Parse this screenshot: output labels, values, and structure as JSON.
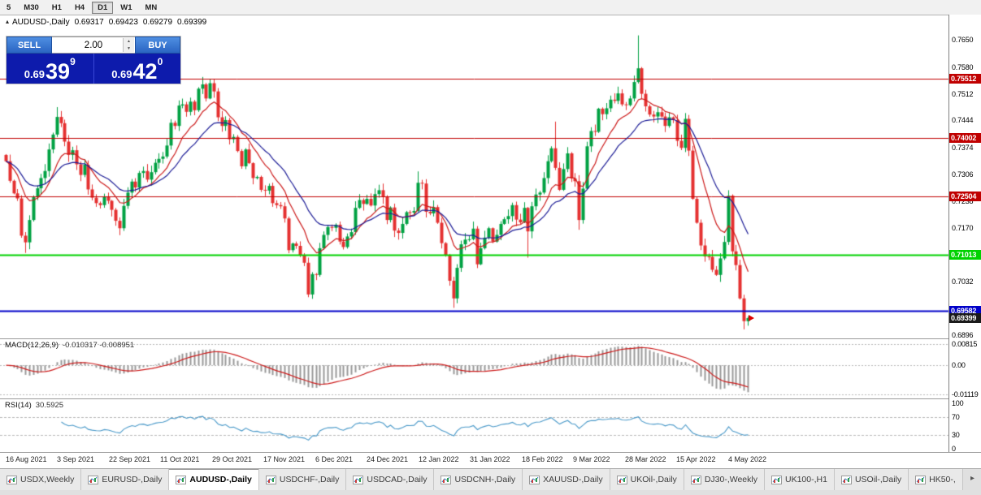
{
  "toolbar": {
    "timeframes": [
      "5",
      "M30",
      "H1",
      "H4",
      "D1",
      "W1",
      "MN"
    ],
    "active": "D1"
  },
  "chart_header": {
    "collapse_icon": "▴",
    "symbol": "AUDUSD-,Daily",
    "open": "0.69317",
    "high": "0.69423",
    "low": "0.69279",
    "close": "0.69399"
  },
  "trade_panel": {
    "sell_label": "SELL",
    "buy_label": "BUY",
    "volume": "2.00",
    "sell_price": {
      "main": "0.69",
      "big": "39",
      "sup": "9"
    },
    "buy_price": {
      "main": "0.69",
      "big": "42",
      "sup": "0"
    }
  },
  "colors": {
    "up": "#00a143",
    "down": "#e53030",
    "ma_fast": "#cc1a1a",
    "ma_slow": "#1c1c96",
    "macd_hist": "#999999",
    "macd_signal": "#cc1a1a",
    "rsi_line": "#4898c8",
    "level_red": "#c00000",
    "level_green": "#00d200",
    "level_blue": "#0000c8",
    "badge_black": "#1a1a1a",
    "grid_dash": "#b8b8b8"
  },
  "price_axis": {
    "labels": [
      {
        "text": "0.7650",
        "value": 0.765
      },
      {
        "text": "0.7580",
        "value": 0.758
      },
      {
        "text": "0.7512",
        "value": 0.7512
      },
      {
        "text": "0.7444",
        "value": 0.7444
      },
      {
        "text": "0.7374",
        "value": 0.7374
      },
      {
        "text": "0.7306",
        "value": 0.7306
      },
      {
        "text": "0.7238",
        "value": 0.7238
      },
      {
        "text": "0.7170",
        "value": 0.717
      },
      {
        "text": "0.7032",
        "value": 0.7032
      },
      {
        "text": "0.6896",
        "value": 0.6896
      }
    ],
    "current": {
      "text": "0.69399",
      "value": 0.69399
    }
  },
  "macd_panel": {
    "name": "MACD(12,26,9)",
    "values": "-0.010317 -0.008951",
    "axis": [
      {
        "text": "0.00815",
        "value": 0.00815
      },
      {
        "text": "0.00",
        "value": 0
      },
      {
        "text": "-0.01119",
        "value": -0.01119
      }
    ]
  },
  "rsi_panel": {
    "name": "RSI(14)",
    "value": "30.5925",
    "axis": [
      {
        "text": "100",
        "value": 100
      },
      {
        "text": "70",
        "value": 70
      },
      {
        "text": "30",
        "value": 30
      },
      {
        "text": "0",
        "value": 0
      }
    ]
  },
  "date_axis": [
    "16 Aug 2021",
    "3 Sep 2021",
    "22 Sep 2021",
    "11 Oct 2021",
    "29 Oct 2021",
    "17 Nov 2021",
    "6 Dec 2021",
    "24 Dec 2021",
    "12 Jan 2022",
    "31 Jan 2022",
    "18 Feb 2022",
    "9 Mar 2022",
    "28 Mar 2022",
    "15 Apr 2022",
    "4 May 2022"
  ],
  "tabs": {
    "items": [
      {
        "label": "USDX,Weekly"
      },
      {
        "label": "EURUSD-,Daily"
      },
      {
        "label": "AUDUSD-,Daily",
        "active": true
      },
      {
        "label": "USDCHF-,Daily"
      },
      {
        "label": "USDCAD-,Daily"
      },
      {
        "label": "USDCNH-,Daily"
      },
      {
        "label": "XAUUSD-,Daily"
      },
      {
        "label": "UKOil-,Daily"
      },
      {
        "label": "DJ30-,Weekly"
      },
      {
        "label": "UK100-,H1"
      },
      {
        "label": "USOil-,Daily"
      },
      {
        "label": "HK50-,"
      }
    ],
    "scroll_icon": "▸"
  },
  "chart_data": {
    "type": "candlestick",
    "symbol": "AUDUSD-",
    "timeframe": "Daily",
    "ohlc_last": {
      "open": 0.69317,
      "high": 0.69423,
      "low": 0.69279,
      "close": 0.69399
    },
    "y_range": [
      0.6888,
      0.7714
    ],
    "x_labels": [
      "16 Aug 2021",
      "3 Sep 2021",
      "22 Sep 2021",
      "11 Oct 2021",
      "29 Oct 2021",
      "17 Nov 2021",
      "6 Dec 2021",
      "24 Dec 2021",
      "12 Jan 2022",
      "31 Jan 2022",
      "18 Feb 2022",
      "9 Mar 2022",
      "28 Mar 2022",
      "15 Apr 2022",
      "4 May 2022"
    ],
    "closes": [
      0.734,
      0.729,
      0.7258,
      0.7245,
      0.715,
      0.7133,
      0.719,
      0.7248,
      0.7271,
      0.7297,
      0.7315,
      0.737,
      0.7408,
      0.7453,
      0.7437,
      0.739,
      0.7356,
      0.7368,
      0.7332,
      0.7305,
      0.7331,
      0.7268,
      0.7247,
      0.7233,
      0.7228,
      0.725,
      0.7239,
      0.7216,
      0.7188,
      0.7169,
      0.7226,
      0.726,
      0.7288,
      0.7273,
      0.731,
      0.7315,
      0.7293,
      0.7312,
      0.7336,
      0.7346,
      0.7352,
      0.738,
      0.7438,
      0.743,
      0.7482,
      0.7485,
      0.7466,
      0.7492,
      0.747,
      0.7525,
      0.7536,
      0.75,
      0.7539,
      0.7518,
      0.7452,
      0.743,
      0.7445,
      0.7396,
      0.7402,
      0.7366,
      0.7327,
      0.737,
      0.7335,
      0.7297,
      0.73,
      0.7267,
      0.7265,
      0.7277,
      0.7233,
      0.7228,
      0.7225,
      0.7194,
      0.7113,
      0.713,
      0.7124,
      0.7101,
      0.7081,
      0.7,
      0.7052,
      0.705,
      0.7118,
      0.7152,
      0.7172,
      0.717,
      0.7178,
      0.7135,
      0.7121,
      0.7148,
      0.7159,
      0.7221,
      0.7241,
      0.7231,
      0.7244,
      0.7227,
      0.7256,
      0.7266,
      0.7249,
      0.719,
      0.7222,
      0.7163,
      0.7157,
      0.718,
      0.721,
      0.7209,
      0.7213,
      0.7285,
      0.7283,
      0.7211,
      0.7207,
      0.7223,
      0.7183,
      0.7131,
      0.7101,
      0.7035,
      0.699,
      0.7068,
      0.7128,
      0.714,
      0.7141,
      0.7168,
      0.7077,
      0.7118,
      0.7145,
      0.7169,
      0.7135,
      0.7152,
      0.718,
      0.7192,
      0.72,
      0.7228,
      0.7191,
      0.7184,
      0.7221,
      0.7161,
      0.7225,
      0.7255,
      0.726,
      0.7297,
      0.734,
      0.7373,
      0.7323,
      0.7267,
      0.732,
      0.736,
      0.7296,
      0.7289,
      0.719,
      0.727,
      0.7378,
      0.7417,
      0.7415,
      0.7474,
      0.746,
      0.7475,
      0.7497,
      0.7494,
      0.7513,
      0.7485,
      0.7483,
      0.75,
      0.7542,
      0.7577,
      0.7512,
      0.748,
      0.7459,
      0.7454,
      0.7465,
      0.7454,
      0.743,
      0.7452,
      0.7445,
      0.7392,
      0.7374,
      0.7448,
      0.7367,
      0.7244,
      0.7183,
      0.7125,
      0.7097,
      0.7096,
      0.7063,
      0.705,
      0.7092,
      0.7134,
      0.7252,
      0.711,
      0.7075,
      0.699,
      0.6932,
      0.69399
    ],
    "wick_overrides": {
      "5": {
        "low": 0.7106
      },
      "13": {
        "high": 0.7478
      },
      "50": {
        "high": 0.7555
      },
      "52": {
        "high": 0.7549
      },
      "77": {
        "low": 0.6993
      },
      "105": {
        "high": 0.7314
      },
      "114": {
        "low": 0.6966
      },
      "133": {
        "low": 0.7094
      },
      "140": {
        "high": 0.7441
      },
      "146": {
        "low": 0.7165
      },
      "161": {
        "high": 0.7661
      },
      "184": {
        "high": 0.7266
      },
      "188": {
        "low": 0.6911
      }
    },
    "h_lines": [
      {
        "price": 0.7551,
        "color": "#c00000",
        "width": 1,
        "label": "0.75512"
      },
      {
        "price": 0.74,
        "color": "#c00000",
        "width": 1,
        "label": "0.74002"
      },
      {
        "price": 0.725,
        "color": "#c00000",
        "width": 1,
        "label": "0.72504"
      },
      {
        "price": 0.7101,
        "color": "#00d200",
        "width": 2,
        "label": "0.71013"
      },
      {
        "price": 0.6958,
        "color": "#0000c8",
        "width": 2,
        "label": "0.69582"
      }
    ],
    "current_price": 0.69399,
    "moving_averages": [
      {
        "type": "EMA",
        "period": 10,
        "color_key": "ma_fast"
      },
      {
        "type": "EMA",
        "period": 21,
        "color_key": "ma_slow"
      }
    ],
    "indicators": {
      "macd": {
        "fast": 12,
        "slow": 26,
        "signal": 9,
        "display_range": [
          -0.01119,
          0.00815
        ],
        "last_values": [
          -0.010317,
          -0.008951
        ]
      },
      "rsi": {
        "period": 14,
        "last_value": 30.5925,
        "levels": [
          70,
          30
        ],
        "range": [
          0,
          100
        ]
      }
    }
  }
}
